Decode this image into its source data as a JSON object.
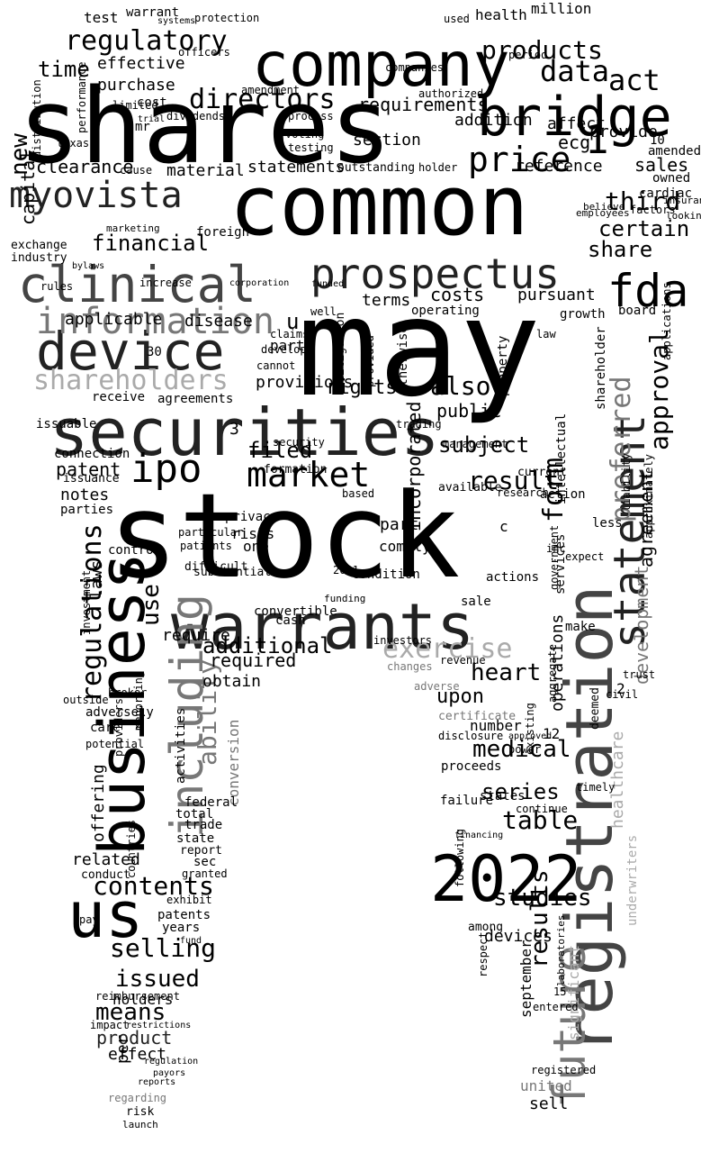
{
  "cloud": {
    "background": "#ffffff",
    "shape": "tooth",
    "palette": {
      "black": "#000000",
      "dark": "#222222",
      "mid": "#444444",
      "gray": "#777777",
      "light": "#aaaaaa"
    },
    "words": [
      {
        "text": "may",
        "tone": "black"
      },
      {
        "text": "stock",
        "tone": "black"
      },
      {
        "text": "shares",
        "tone": "black"
      },
      {
        "text": "common",
        "tone": "black"
      },
      {
        "text": "company",
        "tone": "black"
      },
      {
        "text": "securities",
        "tone": "dark"
      },
      {
        "text": "warrants",
        "tone": "dark"
      },
      {
        "text": "business",
        "tone": "black"
      },
      {
        "text": "registration",
        "tone": "mid"
      },
      {
        "text": "2022",
        "tone": "black"
      },
      {
        "text": "future",
        "tone": "gray"
      },
      {
        "text": "device",
        "tone": "dark"
      },
      {
        "text": "clinical",
        "tone": "mid"
      },
      {
        "text": "bridge",
        "tone": "black"
      },
      {
        "text": "us",
        "tone": "black"
      },
      {
        "text": "prospectus",
        "tone": "dark"
      },
      {
        "text": "information",
        "tone": "gray"
      },
      {
        "text": "including",
        "tone": "gray"
      },
      {
        "text": "statement",
        "tone": "dark"
      },
      {
        "text": "myovista",
        "tone": "dark"
      },
      {
        "text": "shareholders",
        "tone": "light"
      },
      {
        "text": "ipo",
        "tone": "black"
      },
      {
        "text": "fda",
        "tone": "black"
      },
      {
        "text": "price",
        "tone": "black"
      },
      {
        "text": "market",
        "tone": "black"
      },
      {
        "text": "regulatory",
        "tone": "black"
      },
      {
        "text": "directors",
        "tone": "black"
      },
      {
        "text": "products",
        "tone": "black"
      },
      {
        "text": "data",
        "tone": "black"
      },
      {
        "text": "act",
        "tone": "black"
      },
      {
        "text": "exercise",
        "tone": "light"
      },
      {
        "text": "preferred",
        "tone": "gray"
      },
      {
        "text": "regulations",
        "tone": "black"
      },
      {
        "text": "ability",
        "tone": "gray"
      },
      {
        "text": "contents",
        "tone": "black"
      },
      {
        "text": "selling",
        "tone": "black"
      },
      {
        "text": "issued",
        "tone": "black"
      },
      {
        "text": "means",
        "tone": "black"
      },
      {
        "text": "additional",
        "tone": "black"
      },
      {
        "text": "subject",
        "tone": "black"
      },
      {
        "text": "result",
        "tone": "black"
      },
      {
        "text": "heart",
        "tone": "black"
      },
      {
        "text": "medical",
        "tone": "black"
      },
      {
        "text": "table",
        "tone": "black"
      },
      {
        "text": "studies",
        "tone": "black"
      },
      {
        "text": "results",
        "tone": "black"
      },
      {
        "text": "also",
        "tone": "black"
      },
      {
        "text": "form",
        "tone": "black"
      },
      {
        "text": "financial",
        "tone": "black"
      },
      {
        "text": "third",
        "tone": "black"
      },
      {
        "text": "certain",
        "tone": "black"
      },
      {
        "text": "approval",
        "tone": "black"
      },
      {
        "text": "agreement",
        "tone": "black"
      },
      {
        "text": "share",
        "tone": "black"
      },
      {
        "text": "time",
        "tone": "black"
      },
      {
        "text": "new",
        "tone": "black"
      },
      {
        "text": "capital",
        "tone": "black"
      },
      {
        "text": "effective",
        "tone": "black"
      },
      {
        "text": "requirements",
        "tone": "black"
      },
      {
        "text": "purchase",
        "tone": "black"
      },
      {
        "text": "clearance",
        "tone": "black"
      },
      {
        "text": "reference",
        "tone": "black"
      },
      {
        "text": "sales",
        "tone": "black"
      },
      {
        "text": "provide",
        "tone": "black"
      },
      {
        "text": "affect",
        "tone": "black"
      },
      {
        "text": "addition",
        "tone": "black"
      },
      {
        "text": "section",
        "tone": "black"
      },
      {
        "text": "statements",
        "tone": "black"
      },
      {
        "text": "material",
        "tone": "black"
      },
      {
        "text": "terms",
        "tone": "black"
      },
      {
        "text": "costs",
        "tone": "black"
      },
      {
        "text": "pursuant",
        "tone": "black"
      },
      {
        "text": "filed",
        "tone": "black"
      },
      {
        "text": "rights",
        "tone": "black"
      },
      {
        "text": "public",
        "tone": "black"
      },
      {
        "text": "upon",
        "tone": "black"
      },
      {
        "text": "series",
        "tone": "black"
      },
      {
        "text": "use",
        "tone": "black"
      },
      {
        "text": "required",
        "tone": "black"
      },
      {
        "text": "applicable",
        "tone": "black"
      },
      {
        "text": "disease",
        "tone": "black"
      },
      {
        "text": "patent",
        "tone": "black"
      },
      {
        "text": "notes",
        "tone": "black"
      },
      {
        "text": "party",
        "tone": "black"
      },
      {
        "text": "provisions",
        "tone": "black"
      },
      {
        "text": "incorporated",
        "tone": "black"
      },
      {
        "text": "operations",
        "tone": "black"
      },
      {
        "text": "development",
        "tone": "gray"
      },
      {
        "text": "healthcare",
        "tone": "light"
      },
      {
        "text": "significant",
        "tone": "light"
      },
      {
        "text": "underwriters",
        "tone": "light"
      },
      {
        "text": "united",
        "tone": "gray"
      },
      {
        "text": "sell",
        "tone": "black"
      },
      {
        "text": "devices",
        "tone": "black"
      },
      {
        "text": "september",
        "tone": "black"
      },
      {
        "text": "product",
        "tone": "dark"
      },
      {
        "text": "effect",
        "tone": "black"
      },
      {
        "text": "holders",
        "tone": "black"
      },
      {
        "text": "offering",
        "tone": "black"
      },
      {
        "text": "related",
        "tone": "black"
      },
      {
        "text": "conversion",
        "tone": "gray"
      },
      {
        "text": "obtain",
        "tone": "black"
      },
      {
        "text": "require",
        "tone": "black"
      },
      {
        "text": "convertible",
        "tone": "black"
      },
      {
        "text": "privacy",
        "tone": "black"
      },
      {
        "text": "risks",
        "tone": "black"
      },
      {
        "text": "one",
        "tone": "black"
      },
      {
        "text": "control",
        "tone": "black"
      },
      {
        "text": "laws",
        "tone": "black"
      },
      {
        "text": "part",
        "tone": "black"
      },
      {
        "text": "comply",
        "tone": "black"
      },
      {
        "text": "sale",
        "tone": "black"
      },
      {
        "text": "number",
        "tone": "black"
      },
      {
        "text": "proceeds",
        "tone": "black"
      },
      {
        "text": "failure",
        "tone": "black"
      },
      {
        "text": "states",
        "tone": "black"
      },
      {
        "text": "reimbursement",
        "tone": "black"
      },
      {
        "text": "regarding",
        "tone": "gray"
      },
      {
        "text": "risk",
        "tone": "black"
      },
      {
        "text": "launch",
        "tone": "black"
      },
      {
        "text": "test",
        "tone": "black"
      },
      {
        "text": "warrant",
        "tone": "black"
      },
      {
        "text": "health",
        "tone": "black"
      },
      {
        "text": "million",
        "tone": "black"
      },
      {
        "text": "ecg",
        "tone": "black"
      },
      {
        "text": "limited",
        "tone": "black"
      },
      {
        "text": "owned",
        "tone": "black"
      },
      {
        "text": "cardiac",
        "tone": "black"
      },
      {
        "text": "factors",
        "tone": "black"
      },
      {
        "text": "officers",
        "tone": "black"
      },
      {
        "text": "protection",
        "tone": "black"
      },
      {
        "text": "systems",
        "tone": "black"
      },
      {
        "text": "dividends",
        "tone": "black"
      },
      {
        "text": "amendment",
        "tone": "black"
      },
      {
        "text": "voting",
        "tone": "black"
      },
      {
        "text": "testing",
        "tone": "black"
      },
      {
        "text": "process",
        "tone": "black"
      },
      {
        "text": "outstanding",
        "tone": "black"
      },
      {
        "text": "holder",
        "tone": "black"
      },
      {
        "text": "believe",
        "tone": "black"
      },
      {
        "text": "employees",
        "tone": "black"
      },
      {
        "text": "period",
        "tone": "black"
      },
      {
        "text": "used",
        "tone": "black"
      },
      {
        "text": "companies",
        "tone": "black"
      },
      {
        "text": "authorized",
        "tone": "black"
      },
      {
        "text": "amended",
        "tone": "black"
      },
      {
        "text": "foreign",
        "tone": "black"
      },
      {
        "text": "marketing",
        "tone": "black"
      },
      {
        "text": "exchange",
        "tone": "black"
      },
      {
        "text": "industry",
        "tone": "black"
      },
      {
        "text": "rules",
        "tone": "black"
      },
      {
        "text": "bylaws",
        "tone": "black"
      },
      {
        "text": "increase",
        "tone": "black"
      },
      {
        "text": "corporation",
        "tone": "black"
      },
      {
        "text": "well",
        "tone": "black"
      },
      {
        "text": "funded",
        "tone": "black"
      },
      {
        "text": "otherwise",
        "tone": "black"
      },
      {
        "text": "operating",
        "tone": "black"
      },
      {
        "text": "provided",
        "tone": "black"
      },
      {
        "text": "litigation",
        "tone": "black"
      },
      {
        "text": "claims",
        "tone": "black"
      },
      {
        "text": "develop",
        "tone": "black"
      },
      {
        "text": "cannot",
        "tone": "black"
      },
      {
        "text": "receive",
        "tone": "black"
      },
      {
        "text": "agreements",
        "tone": "black"
      },
      {
        "text": "issuable",
        "tone": "black"
      },
      {
        "text": "connection",
        "tone": "black"
      },
      {
        "text": "issuance",
        "tone": "black"
      },
      {
        "text": "parties",
        "tone": "black"
      },
      {
        "text": "substantial",
        "tone": "black"
      },
      {
        "text": "formation",
        "tone": "black"
      },
      {
        "text": "security",
        "tone": "black"
      },
      {
        "text": "based",
        "tone": "black"
      },
      {
        "text": "available",
        "tone": "black"
      },
      {
        "text": "current",
        "tone": "black"
      },
      {
        "text": "management",
        "tone": "black"
      },
      {
        "text": "trading",
        "tone": "black"
      },
      {
        "text": "property",
        "tone": "black"
      },
      {
        "text": "law",
        "tone": "black"
      },
      {
        "text": "growth",
        "tone": "black"
      },
      {
        "text": "board",
        "tone": "black"
      },
      {
        "text": "shareholder",
        "tone": "black"
      },
      {
        "text": "liability",
        "tone": "black"
      },
      {
        "text": "action",
        "tone": "black"
      },
      {
        "text": "research",
        "tone": "black"
      },
      {
        "text": "services",
        "tone": "black"
      },
      {
        "text": "intellectual",
        "tone": "black"
      },
      {
        "text": "less",
        "tone": "black"
      },
      {
        "text": "expect",
        "tone": "black"
      },
      {
        "text": "make",
        "tone": "black"
      },
      {
        "text": "actions",
        "tone": "black"
      },
      {
        "text": "condition",
        "tone": "black"
      },
      {
        "text": "funding",
        "tone": "black"
      },
      {
        "text": "cash",
        "tone": "black"
      },
      {
        "text": "investors",
        "tone": "black"
      },
      {
        "text": "revenue",
        "tone": "black"
      },
      {
        "text": "changes",
        "tone": "gray"
      },
      {
        "text": "adverse",
        "tone": "gray"
      },
      {
        "text": "certificate",
        "tone": "gray"
      },
      {
        "text": "disclosure",
        "tone": "black"
      },
      {
        "text": "approved",
        "tone": "black"
      },
      {
        "text": "power",
        "tone": "black"
      },
      {
        "text": "existing",
        "tone": "black"
      },
      {
        "text": "timely",
        "tone": "black"
      },
      {
        "text": "continue",
        "tone": "black"
      },
      {
        "text": "following",
        "tone": "black"
      },
      {
        "text": "financing",
        "tone": "black"
      },
      {
        "text": "among",
        "tone": "black"
      },
      {
        "text": "respect",
        "tone": "black"
      },
      {
        "text": "laboratories",
        "tone": "black"
      },
      {
        "text": "entered",
        "tone": "black"
      },
      {
        "text": "registered",
        "tone": "black"
      },
      {
        "text": "deemed",
        "tone": "black"
      },
      {
        "text": "aggregate",
        "tone": "black"
      },
      {
        "text": "trust",
        "tone": "black"
      },
      {
        "text": "civil",
        "tone": "black"
      },
      {
        "text": "adversely",
        "tone": "black"
      },
      {
        "text": "care",
        "tone": "black"
      },
      {
        "text": "potential",
        "tone": "black"
      },
      {
        "text": "outside",
        "tone": "black"
      },
      {
        "text": "broker",
        "tone": "black"
      },
      {
        "text": "reporting",
        "tone": "black"
      },
      {
        "text": "providers",
        "tone": "black"
      },
      {
        "text": "activities",
        "tone": "black"
      },
      {
        "text": "federal",
        "tone": "black"
      },
      {
        "text": "total",
        "tone": "black"
      },
      {
        "text": "trade",
        "tone": "black"
      },
      {
        "text": "state",
        "tone": "black"
      },
      {
        "text": "report",
        "tone": "black"
      },
      {
        "text": "sec",
        "tone": "black"
      },
      {
        "text": "granted",
        "tone": "black"
      },
      {
        "text": "exhibit",
        "tone": "black"
      },
      {
        "text": "patents",
        "tone": "black"
      },
      {
        "text": "years",
        "tone": "black"
      },
      {
        "text": "fund",
        "tone": "black"
      },
      {
        "text": "payors",
        "tone": "black"
      },
      {
        "text": "reports",
        "tone": "black"
      },
      {
        "text": "regulation",
        "tone": "black"
      },
      {
        "text": "per",
        "tone": "black"
      },
      {
        "text": "impact",
        "tone": "black"
      },
      {
        "text": "restrictions",
        "tone": "black"
      },
      {
        "text": "pay",
        "tone": "black"
      },
      {
        "text": "conduct",
        "tone": "black"
      },
      {
        "text": "countries",
        "tone": "black"
      },
      {
        "text": "investment",
        "tone": "black"
      },
      {
        "text": "patients",
        "tone": "black"
      },
      {
        "text": "particular",
        "tone": "black"
      },
      {
        "text": "difficult",
        "tone": "black"
      },
      {
        "text": "texas",
        "tone": "black"
      },
      {
        "text": "mr",
        "tone": "black"
      },
      {
        "text": "cost",
        "tone": "black"
      },
      {
        "text": "trial",
        "tone": "black"
      },
      {
        "text": "cause",
        "tone": "black"
      },
      {
        "text": "distribution",
        "tone": "black"
      },
      {
        "text": "performance",
        "tone": "black"
      },
      {
        "text": "inc",
        "tone": "black"
      },
      {
        "text": "government",
        "tone": "black"
      },
      {
        "text": "approximately",
        "tone": "black"
      },
      {
        "text": "applications",
        "tone": "black"
      },
      {
        "text": "insurance",
        "tone": "black"
      },
      {
        "text": "looking",
        "tone": "black"
      },
      {
        "text": "c",
        "tone": "black"
      },
      {
        "text": "u",
        "tone": "black"
      },
      {
        "text": "1",
        "tone": "black"
      },
      {
        "text": "10",
        "tone": "black"
      },
      {
        "text": "12",
        "tone": "black"
      },
      {
        "text": "15",
        "tone": "black"
      },
      {
        "text": "2",
        "tone": "black"
      },
      {
        "text": "3",
        "tone": "black"
      },
      {
        "text": "4",
        "tone": "black"
      },
      {
        "text": "30",
        "tone": "black"
      },
      {
        "text": "2021",
        "tone": "black"
      }
    ]
  }
}
